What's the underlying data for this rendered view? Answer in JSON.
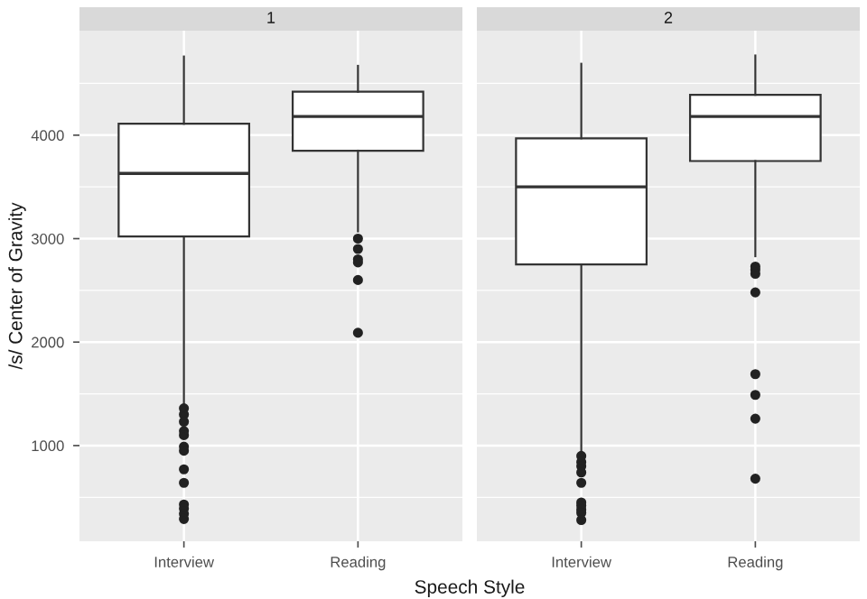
{
  "chart_data": [
    {
      "type": "box",
      "title": "1",
      "xlabel": "Speech Style",
      "ylabel": "/s/ Center of Gravity",
      "categories": [
        "Interview",
        "Reading"
      ],
      "ylim": [
        75,
        5010
      ],
      "yticks": [
        1000,
        2000,
        3000,
        4000
      ],
      "grid": true,
      "boxes": [
        {
          "low": 1410,
          "q1": 3020,
          "median": 3630,
          "q3": 4110,
          "high": 4760,
          "outliers": [
            1360,
            1300,
            1230,
            1140,
            1100,
            990,
            950,
            770,
            640,
            430,
            390,
            340,
            290
          ]
        },
        {
          "low": 3070,
          "q1": 3850,
          "median": 4180,
          "q3": 4420,
          "high": 4670,
          "outliers": [
            3000,
            2900,
            2800,
            2770,
            2600,
            2090
          ]
        }
      ]
    },
    {
      "type": "box",
      "title": "2",
      "categories": [
        "Interview",
        "Reading"
      ],
      "ylim": [
        75,
        5010
      ],
      "yticks": [
        1000,
        2000,
        3000,
        4000
      ],
      "grid": true,
      "tick_labels": "x",
      "boxes": [
        {
          "low": 940,
          "q1": 2750,
          "median": 3500,
          "q3": 3970,
          "high": 4690,
          "outliers": [
            900,
            840,
            800,
            740,
            640,
            450,
            420,
            380,
            350,
            280
          ]
        },
        {
          "low": 2830,
          "q1": 3750,
          "median": 4180,
          "q3": 4390,
          "high": 4770,
          "outliers": [
            2730,
            2700,
            2660,
            2480,
            1690,
            1490,
            1260,
            680
          ]
        }
      ]
    }
  ]
}
